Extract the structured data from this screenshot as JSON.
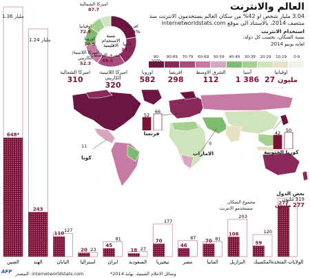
{
  "header": {
    "title": "العالم والانترنت",
    "intro": "3.04 مليار شخص او 42% من سكان العالم يستخدمون الانترنت منذ منتصف 2014، بالاستناد الى موقع internetworldstats.com"
  },
  "legend": {
    "title": "استخدام الانترنت",
    "subtitle": "نسبة السكان، بحسب كل دولة،",
    "date": "لغاية يونيو 2014",
    "ranges": [
      "0-9",
      "10-19",
      "20-29",
      "30-39",
      "40-49",
      "50-59",
      "60-69",
      "70-79",
      "80-89",
      "90-100%"
    ],
    "colors": [
      "#f4f1e6",
      "#e8e2c4",
      "#cfe3bc",
      "#a5d08f",
      "#7dbb6f",
      "#d9a6c2",
      "#c77aa3",
      "#a84d7d",
      "#8a2a5c",
      "#6c1442"
    ]
  },
  "regions": {
    "caption": "مليون مستخدم",
    "items": [
      {
        "name": "اوقيانيا",
        "value": "27"
      },
      {
        "name": "آسيا",
        "value": "1 386"
      },
      {
        "name": "الشرق الاوسط",
        "value": "112"
      },
      {
        "name": "افريقيا",
        "value": "298"
      },
      {
        "name": "اوروبا",
        "value": "582"
      },
      {
        "name": "اميركا اللاتينية، الكاريبي",
        "value": "320"
      },
      {
        "name": "اميركا الشمالية",
        "value": "310"
      }
    ]
  },
  "donut": {
    "center": "نسبة الاستخدام الاقليمية",
    "slices": [
      {
        "name": "اميركا الشمالية",
        "pct": "87.7",
        "color": "#6c1442"
      },
      {
        "name": "اوقيانيا",
        "pct": "72.9",
        "color": "#8a2a5c"
      },
      {
        "name": "اوروبا",
        "pct": "70.5",
        "color": "#a84d7d"
      },
      {
        "name": "اميركا اللاتينية/ الكاريبي",
        "pct": "52.3",
        "color": "#c77aa3"
      },
      {
        "name": "الشرق الاوسط",
        "pct": "48.3",
        "color": "#7dbb6f"
      },
      {
        "name": "آسيا",
        "pct": "34.7",
        "color": "#a5d08f"
      },
      {
        "name": "افريقيا",
        "pct": "26.5%",
        "color": "#cfe3bc"
      }
    ]
  },
  "map_labels": {
    "france": "فرنسا",
    "france_vals": [
      "52",
      "66"
    ],
    "cuba": "كوبا",
    "cuba_val": "11",
    "uae": "الامارات",
    "uae_val": "9",
    "korea": "كوريا الجنوبية",
    "korea_vals": [
      "42",
      "50"
    ]
  },
  "chart_data": {
    "type": "bar",
    "title": "",
    "legend": {
      "header": "بعض الدول",
      "population_label": "مجموع السكان",
      "population_value": "319 مليون",
      "users_label": "مستخدمو الانترنت",
      "users_value": "277 مليون"
    },
    "axis_labels": [
      "1.36 مليار",
      "1.24 مليار"
    ],
    "categories": [
      "الصين",
      "الهند",
      "اليابان",
      "استراليا",
      "ايران",
      "السعودية",
      "نيجيريا",
      "مصر",
      "المانيا",
      "البرازيل",
      "المكسيك",
      "الولايات المتحدة"
    ],
    "series": [
      {
        "name": "مجموع السكان",
        "values": [
          1360,
          1240,
          127,
          23,
          81,
          27,
          177,
          87,
          81,
          203,
          120,
          319
        ]
      },
      {
        "name": "مستخدمو الانترنت",
        "values": [
          648,
          243,
          110,
          20,
          45,
          18,
          70,
          46,
          70,
          108,
          59,
          277
        ]
      }
    ],
    "user_labels": [
      "648*",
      "243",
      "110",
      "20",
      "45",
      "18",
      "70",
      "46",
      "70",
      "108",
      "59",
      "277"
    ],
    "pop_labels": [
      "",
      "",
      "127",
      "23",
      "81",
      "27",
      "177",
      "87",
      "81",
      "203",
      "120",
      ""
    ]
  },
  "footer": {
    "source": "المصدر: internetworldstats.com",
    "note": "*وسائل الاعلام الصينية، نهاية 2014",
    "logo": "AFP"
  }
}
